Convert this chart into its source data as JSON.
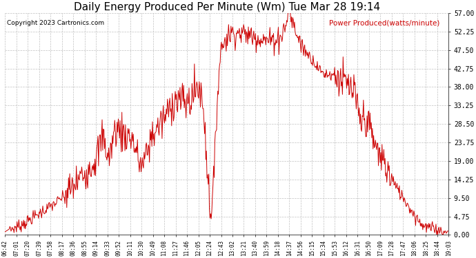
{
  "title": "Daily Energy Produced Per Minute (Wm) Tue Mar 28 19:14",
  "copyright": "Copyright 2023 Cartronics.com",
  "legend_label": "Power Produced(watts/minute)",
  "background_color": "#ffffff",
  "plot_bg_color": "#ffffff",
  "line_color": "#cc0000",
  "title_fontsize": 11,
  "yticks": [
    0.0,
    4.75,
    9.5,
    14.25,
    19.0,
    23.75,
    28.5,
    33.25,
    38.0,
    42.75,
    47.5,
    52.25,
    57.0
  ],
  "ylim": [
    0,
    57.0
  ],
  "x_labels": [
    "06:42",
    "07:01",
    "07:20",
    "07:39",
    "07:58",
    "08:17",
    "08:36",
    "08:55",
    "09:14",
    "09:33",
    "09:52",
    "10:11",
    "10:30",
    "10:49",
    "11:08",
    "11:27",
    "11:46",
    "12:05",
    "12:24",
    "12:43",
    "13:02",
    "13:21",
    "13:40",
    "13:59",
    "14:18",
    "14:37",
    "14:56",
    "15:15",
    "15:34",
    "15:53",
    "16:12",
    "16:31",
    "16:50",
    "17:09",
    "17:28",
    "17:47",
    "18:06",
    "18:25",
    "18:44",
    "19:03"
  ]
}
